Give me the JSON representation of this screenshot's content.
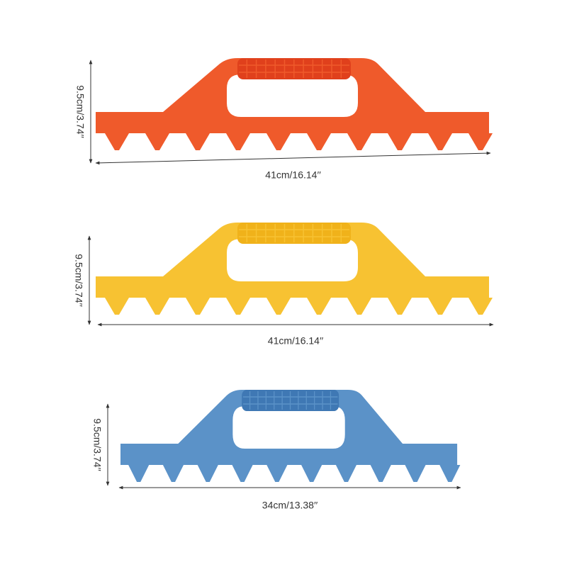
{
  "items": [
    {
      "height_label": "9.5cm/3.74′′",
      "width_label": "41cm/16.14′′"
    },
    {
      "height_label": "9.5cm/3.74′′",
      "width_label": "41cm/16.14′′"
    },
    {
      "height_label": "9.5cm/3.74′′",
      "width_label": "34cm/13.38′′"
    }
  ]
}
